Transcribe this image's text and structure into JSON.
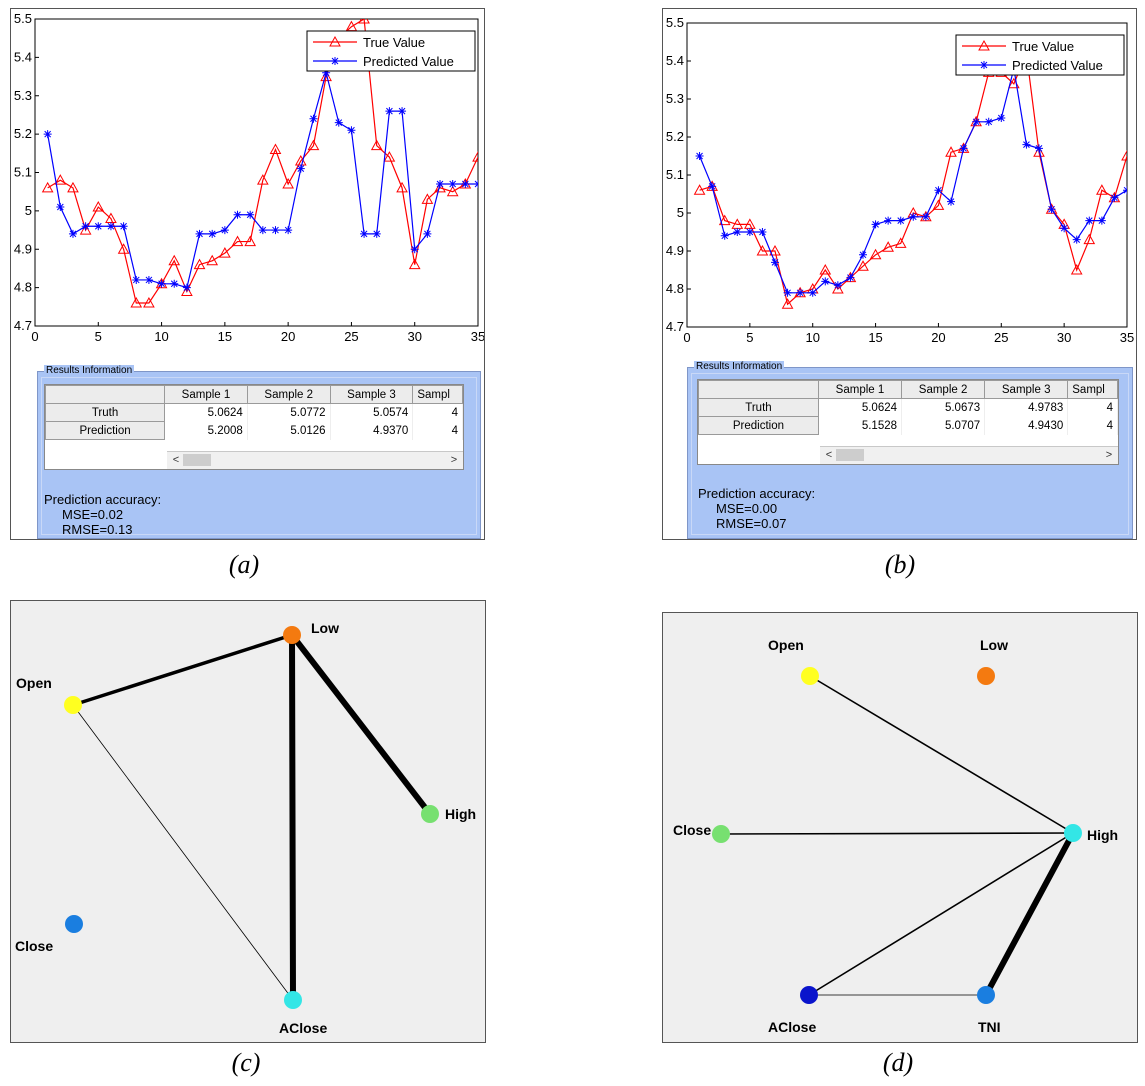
{
  "colors": {
    "true_series": "#ff0000",
    "pred_series": "#0000ff",
    "results_bg": "#a9c4f5"
  },
  "chart_data": [
    {
      "id": "a",
      "type": "line",
      "x": [
        1,
        2,
        3,
        4,
        5,
        6,
        7,
        8,
        9,
        10,
        11,
        12,
        13,
        14,
        15,
        16,
        17,
        18,
        19,
        20,
        21,
        22,
        23,
        24,
        25,
        26,
        27,
        28,
        29,
        30,
        31,
        32,
        33,
        34,
        35
      ],
      "series": [
        {
          "name": "True Value",
          "marker": "triangle",
          "values": [
            5.06,
            5.08,
            5.06,
            4.95,
            5.01,
            4.98,
            4.9,
            4.76,
            4.76,
            4.81,
            4.87,
            4.79,
            4.86,
            4.87,
            4.89,
            4.92,
            4.92,
            5.08,
            5.16,
            5.07,
            5.13,
            5.17,
            5.35,
            5.45,
            5.48,
            5.5,
            5.17,
            5.14,
            5.06,
            4.86,
            5.03,
            5.06,
            5.05,
            5.07,
            5.14
          ]
        },
        {
          "name": "Predicted Value",
          "marker": "star",
          "values": [
            5.2,
            5.01,
            4.94,
            4.96,
            4.96,
            4.96,
            4.96,
            4.82,
            4.82,
            4.81,
            4.81,
            4.8,
            4.94,
            4.94,
            4.95,
            4.99,
            4.99,
            4.95,
            4.95,
            4.95,
            5.11,
            5.24,
            5.36,
            5.23,
            5.21,
            4.94,
            4.94,
            5.26,
            5.26,
            4.9,
            4.94,
            5.07,
            5.07,
            5.07,
            5.07
          ]
        }
      ],
      "xlim": [
        0,
        35
      ],
      "ylim": [
        4.7,
        5.5
      ],
      "xticks": [
        "0",
        "5",
        "10",
        "15",
        "20",
        "25",
        "30",
        "35"
      ],
      "yticks": [
        "4.7",
        "4.8",
        "4.9",
        "5",
        "5.1",
        "5.2",
        "5.3",
        "5.4",
        "5.5"
      ],
      "legend": "top-right",
      "grid": false,
      "results": {
        "title": "Results Information",
        "columns": [
          "Sample 1",
          "Sample 2",
          "Sample 3",
          "Sampl"
        ],
        "rows": [
          {
            "label": "Truth",
            "values": [
              "5.0624",
              "5.0772",
              "5.0574",
              "4"
            ]
          },
          {
            "label": "Prediction",
            "values": [
              "5.2008",
              "5.0126",
              "4.9370",
              "4"
            ]
          }
        ],
        "scroll_left": "<",
        "scroll_right": ">",
        "accuracy_label": "Prediction accuracy:",
        "mse": "MSE=0.02",
        "rmse": "RMSE=0.13"
      },
      "caption": "(a)"
    },
    {
      "id": "b",
      "type": "line",
      "x": [
        1,
        2,
        3,
        4,
        5,
        6,
        7,
        8,
        9,
        10,
        11,
        12,
        13,
        14,
        15,
        16,
        17,
        18,
        19,
        20,
        21,
        22,
        23,
        24,
        25,
        26,
        27,
        28,
        29,
        30,
        31,
        32,
        33,
        34,
        35
      ],
      "series": [
        {
          "name": "True Value",
          "marker": "triangle",
          "values": [
            5.06,
            5.07,
            4.98,
            4.97,
            4.97,
            4.9,
            4.9,
            4.76,
            4.79,
            4.8,
            4.85,
            4.8,
            4.83,
            4.86,
            4.89,
            4.91,
            4.92,
            5.0,
            4.99,
            5.02,
            5.16,
            5.17,
            5.24,
            5.37,
            5.37,
            5.34,
            5.42,
            5.16,
            5.01,
            4.97,
            4.85,
            4.93,
            5.06,
            5.04,
            5.15
          ]
        },
        {
          "name": "Predicted Value",
          "marker": "star",
          "values": [
            5.15,
            5.07,
            4.94,
            4.95,
            4.95,
            4.95,
            4.87,
            4.79,
            4.79,
            4.79,
            4.82,
            4.81,
            4.83,
            4.89,
            4.97,
            4.98,
            4.98,
            4.99,
            4.99,
            5.06,
            5.03,
            5.17,
            5.24,
            5.24,
            5.25,
            5.38,
            5.18,
            5.17,
            5.01,
            4.96,
            4.93,
            4.98,
            4.98,
            5.04,
            5.06
          ]
        }
      ],
      "xlim": [
        0,
        35
      ],
      "ylim": [
        4.7,
        5.5
      ],
      "xticks": [
        "0",
        "5",
        "10",
        "15",
        "20",
        "25",
        "30",
        "35"
      ],
      "yticks": [
        "4.7",
        "4.8",
        "4.9",
        "5",
        "5.1",
        "5.2",
        "5.3",
        "5.4",
        "5.5"
      ],
      "legend": "top-right",
      "grid": false,
      "results": {
        "title": "Results Information",
        "columns": [
          "Sample 1",
          "Sample 2",
          "Sample 3",
          "Sampl"
        ],
        "rows": [
          {
            "label": "Truth",
            "values": [
              "5.0624",
              "5.0673",
              "4.9783",
              "4"
            ]
          },
          {
            "label": "Prediction",
            "values": [
              "5.1528",
              "5.0707",
              "4.9430",
              "4"
            ]
          }
        ],
        "scroll_left": "<",
        "scroll_right": ">",
        "accuracy_label": "Prediction accuracy:",
        "mse": "MSE=0.00",
        "rmse": "RMSE=0.07"
      },
      "caption": "(b)"
    }
  ],
  "networks": {
    "c": {
      "caption": "(c)",
      "nodes": [
        {
          "id": "Open",
          "label": "Open",
          "color": "#ffff20"
        },
        {
          "id": "Low",
          "label": "Low",
          "color": "#f47a10"
        },
        {
          "id": "High",
          "label": "High",
          "color": "#77e070"
        },
        {
          "id": "Close",
          "label": "Close",
          "color": "#1a7ee0"
        },
        {
          "id": "AClose",
          "label": "AClose",
          "color": "#33e6e6"
        }
      ],
      "edges": [
        {
          "from": "Open",
          "to": "Low",
          "weight": "strong"
        },
        {
          "from": "Low",
          "to": "High",
          "weight": "very strong"
        },
        {
          "from": "Low",
          "to": "AClose",
          "weight": "very strong"
        },
        {
          "from": "Open",
          "to": "AClose",
          "weight": "weak"
        }
      ]
    },
    "d": {
      "caption": "(d)",
      "nodes": [
        {
          "id": "Open",
          "label": "Open",
          "color": "#ffff20"
        },
        {
          "id": "Low",
          "label": "Low",
          "color": "#f47a10"
        },
        {
          "id": "Close",
          "label": "Close",
          "color": "#77e070"
        },
        {
          "id": "High",
          "label": "High",
          "color": "#33e6e6"
        },
        {
          "id": "AClose",
          "label": "AClose",
          "color": "#0a14cc"
        },
        {
          "id": "TNI",
          "label": "TNI",
          "color": "#1a7ee0"
        }
      ],
      "edges": [
        {
          "from": "Open",
          "to": "High",
          "weight": "medium"
        },
        {
          "from": "Close",
          "to": "High",
          "weight": "medium"
        },
        {
          "from": "AClose",
          "to": "High",
          "weight": "medium"
        },
        {
          "from": "TNI",
          "to": "High",
          "weight": "very strong"
        },
        {
          "from": "AClose",
          "to": "TNI",
          "weight": "weak"
        }
      ]
    }
  }
}
